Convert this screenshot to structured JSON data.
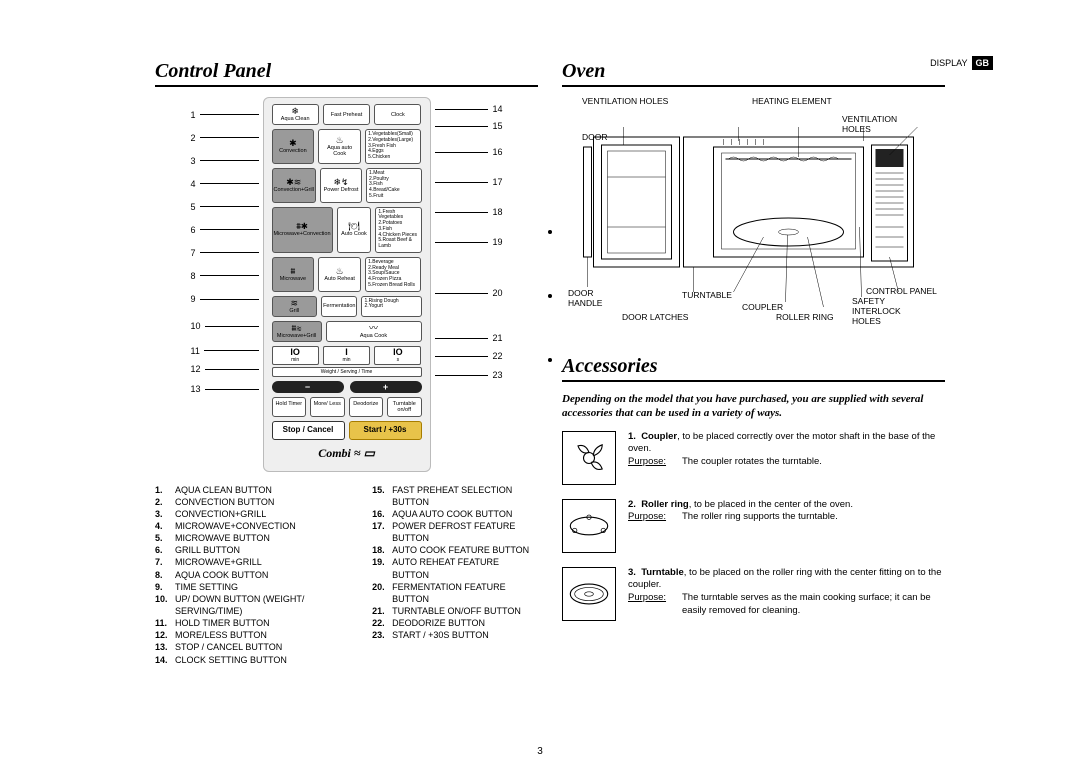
{
  "page_number": "3",
  "gb_badge": "GB",
  "display_label": "DISPLAY",
  "section_control_panel": "Control Panel",
  "section_oven": "Oven",
  "section_accessories": "Accessories",
  "panel": {
    "brand": "Combi",
    "left_numbers": [
      "1",
      "2",
      "3",
      "4",
      "5",
      "6",
      "7",
      "8",
      "9",
      "10",
      "11",
      "12",
      "13"
    ],
    "right_numbers": [
      "14",
      "15",
      "16",
      "17",
      "18",
      "19",
      "20",
      "21",
      "22",
      "23"
    ],
    "buttons": {
      "aqua_clean": "Aqua Clean",
      "fast_preheat": "Fast Preheat",
      "clock": "Clock",
      "convection": "Convection",
      "aqua_auto_cook": "Aqua auto Cook",
      "conv_grill": "Convection+Grill",
      "mw_conv": "Microwave+Convection",
      "power_defrost": "Power Defrost",
      "microwave": "Microwave",
      "auto_cook": "Auto Cook",
      "grill": "Grill",
      "mw_grill": "Microwave+Grill",
      "auto_reheat": "Auto Reheat",
      "aqua_cook": "Aqua Cook",
      "fermentation": "Fermentation",
      "hold_timer": "Hold Timer",
      "more_less": "More/ Less",
      "deodorize": "Deodorize",
      "turntable": "Turntable on/off",
      "stop": "Stop / Cancel",
      "start": "Start / +30s",
      "weight_label": "Weight / Serving / Time",
      "time_cells": [
        {
          "big": "IO",
          "sm": "min"
        },
        {
          "big": "I",
          "sm": "min"
        },
        {
          "big": "IO",
          "sm": "s"
        }
      ],
      "minus": "−",
      "plus": "+"
    },
    "lists": {
      "aqua_auto": "1.Vegetables(Small)\n2.Vegetables(Large)\n3.Fresh Fish\n4.Eggs\n5.Chicken",
      "defrost": "1.Meat\n2.Poultry\n3.Fish\n4.Bread/Cake\n5.Fruit",
      "auto_cook": "1.Fresh Vegetables\n2.Potatoes\n3.Fish\n4.Chicken Pieces\n5.Roast Beef & Lamb",
      "auto_reheat": "1.Beverage\n2.Ready Meal\n3.Soup/Sauce\n4.Frozen Pizza\n5.Frozen Bread Rolls",
      "fermentation": "1.Rising Dough\n2.Yogurt"
    }
  },
  "legend_left": [
    {
      "n": "1.",
      "t": "AQUA CLEAN BUTTON"
    },
    {
      "n": "2.",
      "t": "CONVECTION BUTTON"
    },
    {
      "n": "3.",
      "t": "CONVECTION+GRILL"
    },
    {
      "n": "4.",
      "t": "MICROWAVE+CONVECTION"
    },
    {
      "n": "5.",
      "t": "MICROWAVE BUTTON"
    },
    {
      "n": "6.",
      "t": "GRILL BUTTON"
    },
    {
      "n": "7.",
      "t": "MICROWAVE+GRILL"
    },
    {
      "n": "8.",
      "t": "AQUA COOK BUTTON"
    },
    {
      "n": "9.",
      "t": "TIME SETTING"
    },
    {
      "n": "10.",
      "t": "UP/ DOWN BUTTON (WEIGHT/ SERVING/TIME)"
    },
    {
      "n": "11.",
      "t": "HOLD TIMER BUTTON"
    },
    {
      "n": "12.",
      "t": "MORE/LESS BUTTON"
    },
    {
      "n": "13.",
      "t": "STOP / CANCEL BUTTON"
    },
    {
      "n": "14.",
      "t": "CLOCK SETTING BUTTON"
    }
  ],
  "legend_right": [
    {
      "n": "15.",
      "t": "FAST PREHEAT SELECTION BUTTON"
    },
    {
      "n": "16.",
      "t": "AQUA AUTO COOK BUTTON"
    },
    {
      "n": "17.",
      "t": "POWER DEFROST FEATURE BUTTON"
    },
    {
      "n": "18.",
      "t": "AUTO COOK FEATURE BUTTON"
    },
    {
      "n": "19.",
      "t": "AUTO REHEAT FEATURE BUTTON"
    },
    {
      "n": "20.",
      "t": "FERMENTATION FEATURE BUTTON"
    },
    {
      "n": "21.",
      "t": "TURNTABLE ON/OFF BUTTON"
    },
    {
      "n": "22.",
      "t": "DEODORIZE BUTTON"
    },
    {
      "n": "23.",
      "t": "START / +30S BUTTON"
    }
  ],
  "oven_labels": {
    "ventilation_holes_top": "VENTILATION HOLES",
    "heating_element": "HEATING ELEMENT",
    "ventilation_holes_r": "VENTILATION HOLES",
    "door": "DOOR",
    "door_handle": "DOOR HANDLE",
    "turntable": "TURNTABLE",
    "coupler": "COUPLER",
    "roller_ring": "ROLLER RING",
    "door_latches": "DOOR LATCHES",
    "safety_interlock": "SAFETY INTERLOCK HOLES",
    "control_panel": "CONTROL PANEL"
  },
  "accessories": {
    "intro": "Depending on the model that you have purchased, you are supplied with several accessories that can be used in a variety of ways.",
    "items": [
      {
        "n": "1.",
        "title": "Coupler",
        "desc": ", to be placed correctly over the motor shaft in the base of the oven.",
        "purpose": "The coupler rotates the turntable."
      },
      {
        "n": "2.",
        "title": "Roller ring",
        "desc": ", to be placed in the center of the oven.",
        "purpose": "The roller ring supports the turntable."
      },
      {
        "n": "3.",
        "title": "Turntable",
        "desc": ", to be placed on the roller ring with the center fitting on to the coupler.",
        "purpose": "The turntable serves as the main cooking surface; it can be easily removed for cleaning."
      }
    ],
    "purpose_label": "Purpose:"
  }
}
